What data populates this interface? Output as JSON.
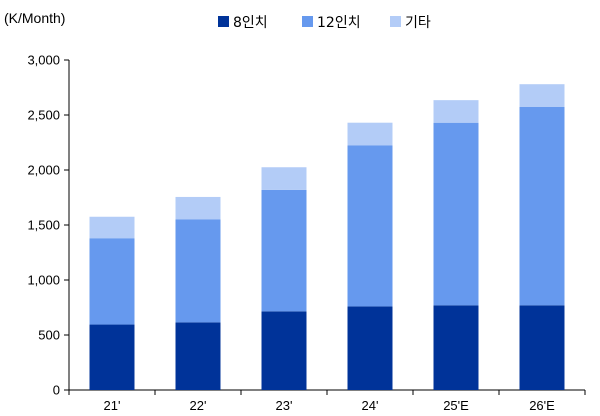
{
  "chart_data": {
    "type": "bar",
    "stacked": true,
    "unit_label": "(K/Month)",
    "categories": [
      "21'",
      "22'",
      "23'",
      "24'",
      "25'E",
      "26'E"
    ],
    "series": [
      {
        "name": "8인치",
        "color": "#003399",
        "values": [
          595,
          615,
          715,
          760,
          770,
          770
        ]
      },
      {
        "name": "12인치",
        "color": "#6699ee",
        "values": [
          785,
          935,
          1105,
          1465,
          1660,
          1805
        ]
      },
      {
        "name": "기타",
        "color": "#b3ccf7",
        "values": [
          195,
          205,
          205,
          205,
          205,
          205
        ]
      }
    ],
    "ylim": [
      0,
      3000
    ],
    "yticks": [
      0,
      500,
      1000,
      1500,
      2000,
      2500,
      3000
    ],
    "ytick_labels": [
      "0",
      "500",
      "1,000",
      "1,500",
      "2,000",
      "2,500",
      "3,000"
    ],
    "grid": false,
    "legend_position": "top"
  }
}
